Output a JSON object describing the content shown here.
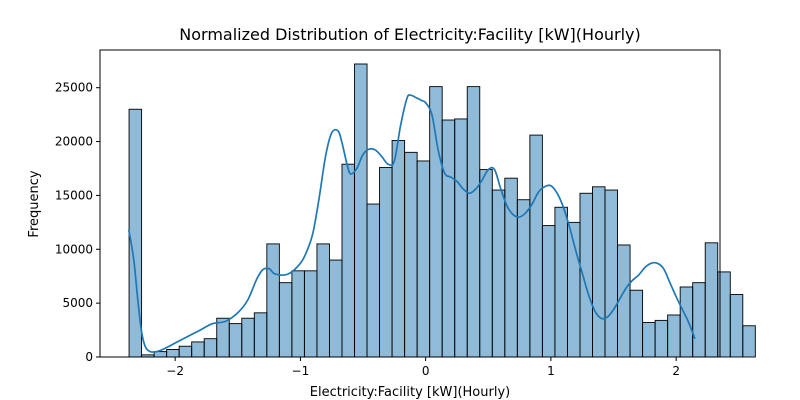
{
  "chart_data": {
    "type": "histogram",
    "title": "Normalized Distribution of Electricity:Facility [kW](Hourly)",
    "xlabel": "Electricity:Facility [kW](Hourly)",
    "ylabel": "Frequency",
    "xlim": [
      -2.6,
      2.35
    ],
    "ylim": [
      0,
      28500
    ],
    "grid": false,
    "bar_color": "#1f77b4",
    "bar_fill_opacity": 0.5,
    "kde_color": "#1f77b4",
    "x_ticks": [
      -2,
      -1,
      0,
      1,
      2
    ],
    "x_tick_labels": [
      "−2",
      "−1",
      "0",
      "1",
      "2"
    ],
    "y_ticks": [
      0,
      5000,
      10000,
      15000,
      20000,
      25000
    ],
    "y_tick_labels": [
      "0",
      "5000",
      "10000",
      "15000",
      "20000",
      "25000"
    ],
    "bin_start": -2.368,
    "bin_width": 0.1,
    "counts": [
      23000,
      200,
      500,
      700,
      1000,
      1400,
      1700,
      3600,
      3100,
      3600,
      4100,
      10500,
      6900,
      8000,
      8000,
      10500,
      9000,
      17900,
      27200,
      14200,
      17600,
      20100,
      19000,
      18200,
      25100,
      22000,
      22100,
      25100,
      17400,
      15500,
      16600,
      14600,
      20600,
      12200,
      13900,
      12500,
      15200,
      15800,
      15500,
      10400,
      6200,
      3200,
      3400,
      3900,
      6500,
      6900,
      10600,
      7900,
      5800,
      2900
    ],
    "kde_x": [
      -2.37,
      -2.33,
      -2.3,
      -2.27,
      -2.24,
      -2.2,
      -2.15,
      -2.1,
      -2.0,
      -1.9,
      -1.8,
      -1.7,
      -1.6,
      -1.5,
      -1.42,
      -1.35,
      -1.3,
      -1.25,
      -1.2,
      -1.1,
      -1.0,
      -0.95,
      -0.9,
      -0.85,
      -0.8,
      -0.75,
      -0.7,
      -0.67,
      -0.63,
      -0.6,
      -0.55,
      -0.5,
      -0.45,
      -0.4,
      -0.35,
      -0.3,
      -0.25,
      -0.2,
      -0.15,
      -0.12,
      -0.08,
      -0.03,
      0.0,
      0.05,
      0.1,
      0.15,
      0.2,
      0.25,
      0.3,
      0.35,
      0.4,
      0.45,
      0.5,
      0.55,
      0.6,
      0.65,
      0.7,
      0.75,
      0.8,
      0.85,
      0.9,
      0.95,
      1.0,
      1.05,
      1.1,
      1.15,
      1.2,
      1.25,
      1.3,
      1.35,
      1.4,
      1.45,
      1.5,
      1.55,
      1.6,
      1.65,
      1.7,
      1.75,
      1.8,
      1.85,
      1.9,
      1.95,
      2.0,
      2.05,
      2.1,
      2.15
    ],
    "kde_y": [
      11800,
      9000,
      5500,
      2500,
      1000,
      500,
      500,
      700,
      1300,
      1900,
      2500,
      3100,
      3300,
      4100,
      5300,
      7200,
      8100,
      8200,
      7700,
      7700,
      8700,
      9800,
      11500,
      14800,
      18600,
      20800,
      21000,
      20000,
      18000,
      17000,
      17500,
      18800,
      19300,
      19200,
      18600,
      17900,
      18200,
      21500,
      24000,
      24300,
      24100,
      23800,
      23600,
      22500,
      19200,
      17100,
      16700,
      16300,
      15600,
      15200,
      15600,
      16400,
      17400,
      17400,
      15600,
      14000,
      13200,
      13000,
      13400,
      14200,
      15300,
      15800,
      15900,
      15200,
      13900,
      12000,
      9800,
      7800,
      5800,
      4300,
      3600,
      3700,
      4400,
      5400,
      6400,
      7100,
      7600,
      8300,
      8700,
      8700,
      8200,
      6900,
      5600,
      4400,
      3200,
      1700
    ]
  }
}
